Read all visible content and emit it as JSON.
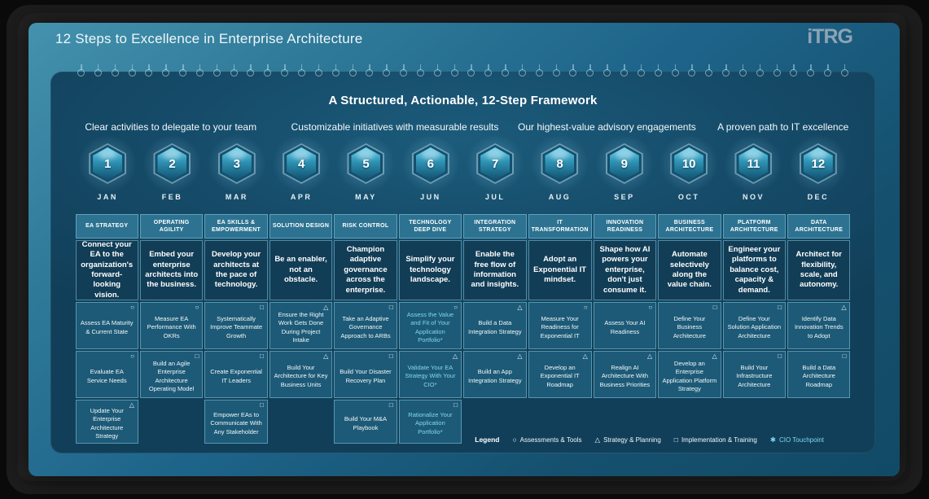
{
  "page": {
    "title": "12 Steps to Excellence in Enterprise Architecture",
    "logo_text": "iTRG"
  },
  "framework": {
    "title": "A Structured, Actionable, 12-Step Framework",
    "subtitles": [
      "Clear activities to delegate to your team",
      "Customizable initiatives with measurable results",
      "Our highest-value advisory engagements",
      "A proven path to IT excellence"
    ]
  },
  "steps": [
    {
      "num": "1",
      "month": "JAN"
    },
    {
      "num": "2",
      "month": "FEB"
    },
    {
      "num": "3",
      "month": "MAR"
    },
    {
      "num": "4",
      "month": "APR"
    },
    {
      "num": "5",
      "month": "MAY"
    },
    {
      "num": "6",
      "month": "JUN"
    },
    {
      "num": "7",
      "month": "JUL"
    },
    {
      "num": "8",
      "month": "AUG"
    },
    {
      "num": "9",
      "month": "SEP"
    },
    {
      "num": "10",
      "month": "OCT"
    },
    {
      "num": "11",
      "month": "NOV"
    },
    {
      "num": "12",
      "month": "DEC"
    }
  ],
  "columns": [
    {
      "header": "EA STRATEGY",
      "statement": "Connect your EA to the organization's forward-looking vision.",
      "activities": [
        {
          "text": "Assess EA Maturity & Current State",
          "icon": "circle",
          "cio": false
        },
        {
          "text": "Evaluate EA Service Needs",
          "icon": "circle",
          "cio": false
        },
        {
          "text": "Update Your Enterprise Architecture Strategy",
          "icon": "triangle",
          "cio": false
        }
      ]
    },
    {
      "header": "OPERATING AGILITY",
      "statement": "Embed your enterprise architects into the business.",
      "activities": [
        {
          "text": "Measure EA Performance With OKRs",
          "icon": "circle",
          "cio": false
        },
        {
          "text": "Build an Agile Enterprise Architecture Operating Model",
          "icon": "square",
          "cio": false
        },
        null
      ]
    },
    {
      "header": "EA SKILLS & EMPOWERMENT",
      "statement": "Develop your architects at the pace of technology.",
      "activities": [
        {
          "text": "Systematically Improve Teammate Growth",
          "icon": "square",
          "cio": false
        },
        {
          "text": "Create Exponential IT Leaders",
          "icon": "square",
          "cio": false
        },
        {
          "text": "Empower EAs to Communicate With Any Stakeholder",
          "icon": "square",
          "cio": false
        }
      ]
    },
    {
      "header": "SOLUTION DESIGN",
      "statement": "Be an enabler, not an obstacle.",
      "activities": [
        {
          "text": "Ensure the Right Work Gets Done During Project Intake",
          "icon": "triangle",
          "cio": false
        },
        {
          "text": "Build Your Architecture for Key Business Units",
          "icon": "triangle",
          "cio": false
        },
        null
      ]
    },
    {
      "header": "RISK CONTROL",
      "statement": "Champion adaptive governance across the enterprise.",
      "activities": [
        {
          "text": "Take an Adaptive Governance Approach to ARBs",
          "icon": "square",
          "cio": false
        },
        {
          "text": "Build Your Disaster Recovery Plan",
          "icon": "square",
          "cio": false
        },
        {
          "text": "Build Your M&A Playbook",
          "icon": "square",
          "cio": false
        }
      ]
    },
    {
      "header": "TECHNOLOGY DEEP DIVE",
      "statement": "Simplify your technology landscape.",
      "activities": [
        {
          "text": "Assess the Value and Fit of Your Application Portfolio*",
          "icon": "circle",
          "cio": true
        },
        {
          "text": "Validate Your EA Strategy With Your CIO*",
          "icon": "triangle",
          "cio": true
        },
        {
          "text": "Rationalize Your Application Portfolio*",
          "icon": "square",
          "cio": true
        }
      ]
    },
    {
      "header": "INTEGRATION STRATEGY",
      "statement": "Enable the free flow of information and insights.",
      "activities": [
        {
          "text": "Build a Data Integration Strategy",
          "icon": "triangle",
          "cio": false
        },
        {
          "text": "Build an App Integration Strategy",
          "icon": "triangle",
          "cio": false
        },
        null
      ]
    },
    {
      "header": "IT TRANSFORMATION",
      "statement": "Adopt an Exponential IT mindset.",
      "activities": [
        {
          "text": "Measure Your Readiness for Exponential IT",
          "icon": "circle",
          "cio": false
        },
        {
          "text": "Develop an Exponential IT Roadmap",
          "icon": "triangle",
          "cio": false
        },
        null
      ]
    },
    {
      "header": "INNOVATION READINESS",
      "statement": "Shape how AI powers your enterprise, don't just consume it.",
      "activities": [
        {
          "text": "Assess Your AI Readiness",
          "icon": "circle",
          "cio": false
        },
        {
          "text": "Realign AI Architecture With Business Priorities",
          "icon": "triangle",
          "cio": false
        },
        null
      ]
    },
    {
      "header": "BUSINESS ARCHITECTURE",
      "statement": "Automate selectively along the value chain.",
      "activities": [
        {
          "text": "Define Your Business Architecture",
          "icon": "square",
          "cio": false
        },
        {
          "text": "Develop an Enterprise Application Platform Strategy",
          "icon": "triangle",
          "cio": false
        },
        null
      ]
    },
    {
      "header": "PLATFORM ARCHITECTURE",
      "statement": "Engineer your platforms to balance cost, capacity & demand.",
      "activities": [
        {
          "text": "Define Your Solution Application Architecture",
          "icon": "square",
          "cio": false
        },
        {
          "text": "Build Your Infrastructure Architecture",
          "icon": "square",
          "cio": false
        },
        null
      ]
    },
    {
      "header": "DATA ARCHITECTURE",
      "statement": "Architect for flexibility, scale, and autonomy.",
      "activities": [
        {
          "text": "Identify Data Innovation Trends to Adopt",
          "icon": "triangle",
          "cio": false
        },
        {
          "text": "Build a Data Architecture Roadmap",
          "icon": "square",
          "cio": false
        },
        null
      ]
    }
  ],
  "legend": {
    "label": "Legend",
    "items": [
      {
        "icon": "circle",
        "text": "Assessments & Tools",
        "cio": false
      },
      {
        "icon": "triangle",
        "text": "Strategy & Planning",
        "cio": false
      },
      {
        "icon": "square",
        "text": "Implementation & Training",
        "cio": false
      },
      {
        "icon": "asterisk",
        "text": "CIO Touchpoint",
        "cio": true
      }
    ]
  },
  "colors": {
    "accent_cyan": "#7fd9ef",
    "card_teal": "#2f7a99",
    "board_blue": "#113f59",
    "header_cell": "#2d7391",
    "statement_cell": "#123d56",
    "activity_cell": "#1d5a77"
  }
}
